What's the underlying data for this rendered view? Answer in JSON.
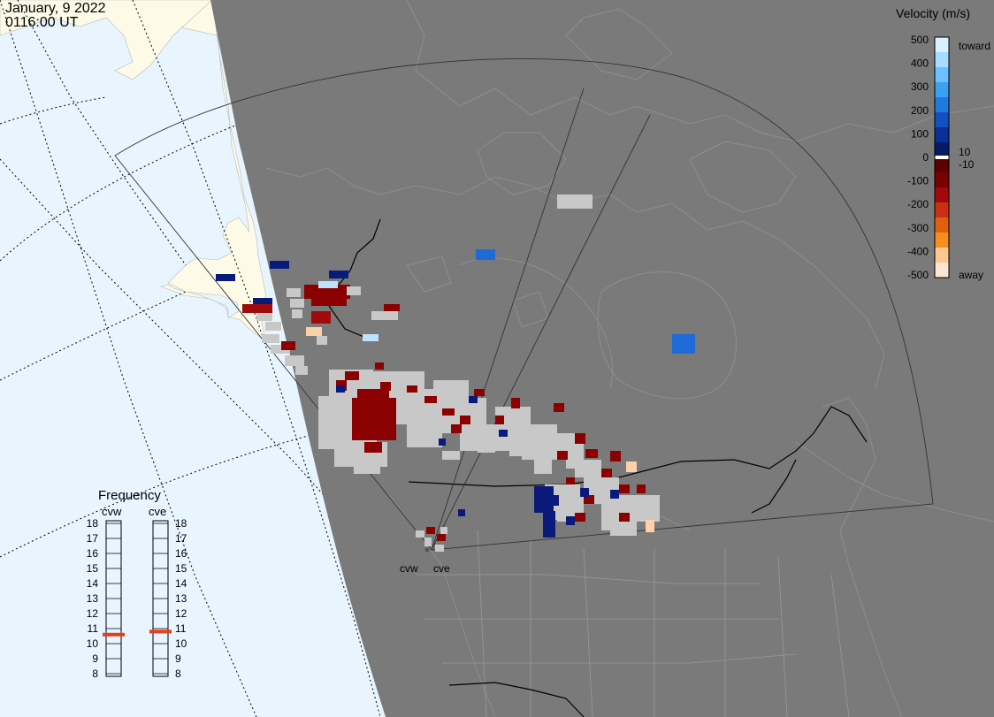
{
  "header": {
    "date": "January, 9 2022",
    "time": "0116:00 UT"
  },
  "colors": {
    "ocean": "#e8f5fe",
    "alaska_land": "#fdfbe8",
    "night_side": "#7a7a7a",
    "no_ground_scatter": "#c8c8c8",
    "frequency_marker": "#e0401a"
  },
  "velocity_scale": {
    "title": "Velocity (m/s)",
    "ticks": [
      "500",
      "400",
      "300",
      "200",
      "100",
      "0",
      "-100",
      "-200",
      "-300",
      "-400",
      "-500"
    ],
    "inner_labels": [
      "10",
      "-10"
    ],
    "toward_label": "toward",
    "away_label": "away",
    "colors_top_to_bottom": [
      "#d9f0ff",
      "#a6dcff",
      "#6cc0ff",
      "#3aa0f0",
      "#1f7ae0",
      "#1350c0",
      "#0a2f96",
      "#061a66",
      "#5a0000",
      "#7a0000",
      "#a00a0a",
      "#c83010",
      "#e06010",
      "#f59020",
      "#fcc890",
      "#ffe6d0"
    ]
  },
  "frequency_panel": {
    "title": "Frequency",
    "radars": [
      {
        "name": "cvw",
        "value_mhz": 10.6
      },
      {
        "name": "cve",
        "value_mhz": 10.8
      }
    ],
    "scale_labels": [
      "18",
      "17",
      "16",
      "15",
      "14",
      "13",
      "12",
      "11",
      "10",
      "9",
      "8"
    ]
  },
  "radar_sites": [
    {
      "name": "cvw"
    },
    {
      "name": "cve"
    }
  ],
  "echo_types": [
    "backscatter velocity",
    "ground scatter"
  ]
}
